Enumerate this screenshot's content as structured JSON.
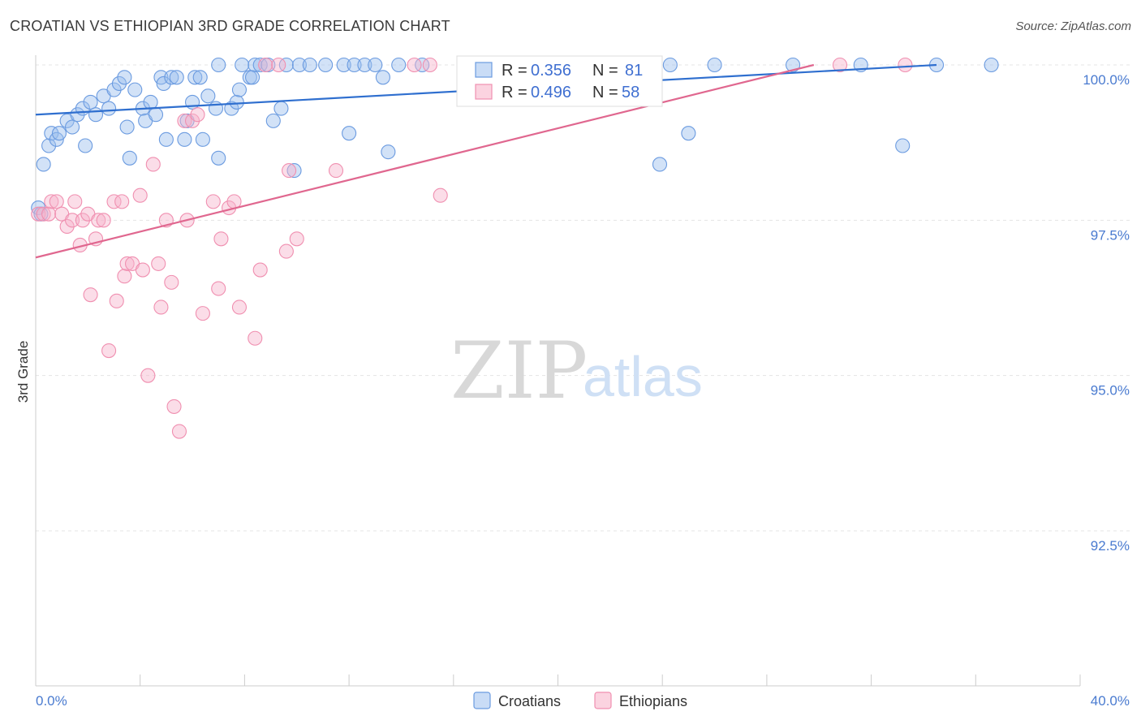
{
  "header": {
    "title": "CROATIAN VS ETHIOPIAN 3RD GRADE CORRELATION CHART",
    "source": "Source: ZipAtlas.com"
  },
  "watermark": {
    "zip": "ZIP",
    "atlas": "atlas"
  },
  "legend_box": {
    "rows": [
      {
        "r_label": "R = ",
        "r_value": "0.356",
        "n_label": "N = ",
        "n_value": "81",
        "color": "#6b9be0"
      },
      {
        "r_label": "R = ",
        "r_value": "0.496",
        "n_label": "N = ",
        "n_value": "58",
        "color": "#f08fb0"
      }
    ]
  },
  "chart_data": {
    "type": "scatter",
    "title": "CROATIAN VS ETHIOPIAN 3RD GRADE CORRELATION CHART",
    "xlabel": "",
    "ylabel": "3rd Grade",
    "xlim": [
      0,
      40
    ],
    "ylim": [
      90.2,
      100.2
    ],
    "x_tick_labels": [
      "0.0%",
      "40.0%"
    ],
    "y_ticks": [
      92.5,
      95.0,
      97.5,
      100.0
    ],
    "y_tick_labels": [
      "92.5%",
      "95.0%",
      "97.5%",
      "100.0%"
    ],
    "grid": true,
    "legend_position": "bottom",
    "series": [
      {
        "name": "Croatians",
        "color": "#6b9be0",
        "trend": {
          "x": [
            0,
            34.5
          ],
          "y": [
            99.2,
            100.0
          ],
          "color": "#2f6fcf"
        },
        "points": [
          [
            0.1,
            97.7
          ],
          [
            0.3,
            98.4
          ],
          [
            0.5,
            98.7
          ],
          [
            0.6,
            98.9
          ],
          [
            0.8,
            98.8
          ],
          [
            0.9,
            98.9
          ],
          [
            1.2,
            99.1
          ],
          [
            1.4,
            99.0
          ],
          [
            1.6,
            99.2
          ],
          [
            1.8,
            99.3
          ],
          [
            1.9,
            98.7
          ],
          [
            2.1,
            99.4
          ],
          [
            2.3,
            99.2
          ],
          [
            2.6,
            99.5
          ],
          [
            2.8,
            99.3
          ],
          [
            3.0,
            99.6
          ],
          [
            3.2,
            99.7
          ],
          [
            3.4,
            99.8
          ],
          [
            3.5,
            99.0
          ],
          [
            3.6,
            98.5
          ],
          [
            3.8,
            99.6
          ],
          [
            4.1,
            99.3
          ],
          [
            4.2,
            99.1
          ],
          [
            4.4,
            99.4
          ],
          [
            4.6,
            99.2
          ],
          [
            4.8,
            99.8
          ],
          [
            4.9,
            99.7
          ],
          [
            5.0,
            98.8
          ],
          [
            5.2,
            99.8
          ],
          [
            5.4,
            99.8
          ],
          [
            5.7,
            98.8
          ],
          [
            5.8,
            99.1
          ],
          [
            6.0,
            99.4
          ],
          [
            6.1,
            99.8
          ],
          [
            6.3,
            99.8
          ],
          [
            6.4,
            98.8
          ],
          [
            6.6,
            99.5
          ],
          [
            6.9,
            99.3
          ],
          [
            7.0,
            100.0
          ],
          [
            7.0,
            98.5
          ],
          [
            7.5,
            99.3
          ],
          [
            7.7,
            99.4
          ],
          [
            7.8,
            99.6
          ],
          [
            7.9,
            100.0
          ],
          [
            8.2,
            99.8
          ],
          [
            8.3,
            99.8
          ],
          [
            8.4,
            100.0
          ],
          [
            8.6,
            100.0
          ],
          [
            8.9,
            100.0
          ],
          [
            9.1,
            99.1
          ],
          [
            9.4,
            99.3
          ],
          [
            9.6,
            100.0
          ],
          [
            9.9,
            98.3
          ],
          [
            10.1,
            100.0
          ],
          [
            10.5,
            100.0
          ],
          [
            11.1,
            100.0
          ],
          [
            11.8,
            100.0
          ],
          [
            12.0,
            98.9
          ],
          [
            12.2,
            100.0
          ],
          [
            12.6,
            100.0
          ],
          [
            13.0,
            100.0
          ],
          [
            13.3,
            99.8
          ],
          [
            13.5,
            98.6
          ],
          [
            13.9,
            100.0
          ],
          [
            14.8,
            100.0
          ],
          [
            16.6,
            100.0
          ],
          [
            17.1,
            100.0
          ],
          [
            18.0,
            100.0
          ],
          [
            19.0,
            100.0
          ],
          [
            21.8,
            100.0
          ],
          [
            23.1,
            100.0
          ],
          [
            23.9,
            98.4
          ],
          [
            24.3,
            100.0
          ],
          [
            25.0,
            98.9
          ],
          [
            26.0,
            100.0
          ],
          [
            29.0,
            100.0
          ],
          [
            31.6,
            100.0
          ],
          [
            33.2,
            98.7
          ],
          [
            34.5,
            100.0
          ],
          [
            36.6,
            100.0
          ],
          [
            0.2,
            97.6
          ]
        ]
      },
      {
        "name": "Ethiopians",
        "color": "#f08fb0",
        "trend": {
          "x": [
            0,
            29.8
          ],
          "y": [
            96.9,
            100.0
          ],
          "color": "#e0678f"
        },
        "points": [
          [
            0.1,
            97.6
          ],
          [
            0.3,
            97.6
          ],
          [
            0.5,
            97.6
          ],
          [
            0.6,
            97.8
          ],
          [
            0.8,
            97.8
          ],
          [
            1.0,
            97.6
          ],
          [
            1.2,
            97.4
          ],
          [
            1.4,
            97.5
          ],
          [
            1.5,
            97.8
          ],
          [
            1.7,
            97.1
          ],
          [
            1.8,
            97.5
          ],
          [
            2.0,
            97.6
          ],
          [
            2.1,
            96.3
          ],
          [
            2.3,
            97.2
          ],
          [
            2.4,
            97.5
          ],
          [
            2.6,
            97.5
          ],
          [
            2.8,
            95.4
          ],
          [
            3.0,
            97.8
          ],
          [
            3.1,
            96.2
          ],
          [
            3.3,
            97.8
          ],
          [
            3.4,
            96.6
          ],
          [
            3.5,
            96.8
          ],
          [
            3.7,
            96.8
          ],
          [
            4.0,
            97.9
          ],
          [
            4.1,
            96.7
          ],
          [
            4.3,
            95.0
          ],
          [
            4.5,
            98.4
          ],
          [
            4.7,
            96.8
          ],
          [
            4.8,
            96.1
          ],
          [
            5.0,
            97.5
          ],
          [
            5.2,
            96.5
          ],
          [
            5.3,
            94.5
          ],
          [
            5.5,
            94.1
          ],
          [
            5.7,
            99.1
          ],
          [
            5.8,
            97.5
          ],
          [
            6.0,
            99.1
          ],
          [
            6.2,
            99.2
          ],
          [
            6.4,
            96.0
          ],
          [
            6.8,
            97.8
          ],
          [
            7.0,
            96.4
          ],
          [
            7.1,
            97.2
          ],
          [
            7.4,
            97.7
          ],
          [
            7.6,
            97.8
          ],
          [
            7.8,
            96.1
          ],
          [
            8.4,
            95.6
          ],
          [
            8.6,
            96.7
          ],
          [
            8.8,
            100.0
          ],
          [
            9.3,
            100.0
          ],
          [
            9.6,
            97.0
          ],
          [
            9.7,
            98.3
          ],
          [
            10.0,
            97.2
          ],
          [
            11.5,
            98.3
          ],
          [
            14.5,
            100.0
          ],
          [
            15.1,
            100.0
          ],
          [
            15.5,
            97.9
          ],
          [
            20.6,
            100.0
          ],
          [
            30.8,
            100.0
          ],
          [
            33.3,
            100.0
          ]
        ]
      }
    ]
  }
}
